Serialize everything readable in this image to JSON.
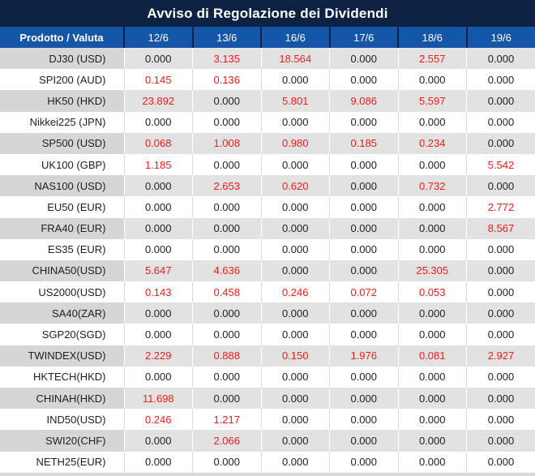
{
  "title": "Avviso di Regolazione dei Dividendi",
  "table": {
    "columns": [
      "Prodotto / Valuta",
      "12/6",
      "13/6",
      "16/6",
      "17/6",
      "18/6",
      "19/6"
    ],
    "zero_value": "0.000",
    "rows": [
      {
        "product": "DJ30 (USD)",
        "values": [
          "0.000",
          "3.135",
          "18.564",
          "0.000",
          "2.557",
          "0.000"
        ]
      },
      {
        "product": "SPI200 (AUD)",
        "values": [
          "0.145",
          "0.136",
          "0.000",
          "0.000",
          "0.000",
          "0.000"
        ]
      },
      {
        "product": "HK50 (HKD)",
        "values": [
          "23.892",
          "0.000",
          "5.801",
          "9.086",
          "5.597",
          "0.000"
        ]
      },
      {
        "product": "Nikkei225 (JPN)",
        "values": [
          "0.000",
          "0.000",
          "0.000",
          "0.000",
          "0.000",
          "0.000"
        ]
      },
      {
        "product": "SP500 (USD)",
        "values": [
          "0.068",
          "1.008",
          "0.980",
          "0.185",
          "0.234",
          "0.000"
        ]
      },
      {
        "product": "UK100 (GBP)",
        "values": [
          "1.185",
          "0.000",
          "0.000",
          "0.000",
          "0.000",
          "5.542"
        ]
      },
      {
        "product": "NAS100 (USD)",
        "values": [
          "0.000",
          "2.653",
          "0.620",
          "0.000",
          "0.732",
          "0.000"
        ]
      },
      {
        "product": "EU50 (EUR)",
        "values": [
          "0.000",
          "0.000",
          "0.000",
          "0.000",
          "0.000",
          "2.772"
        ]
      },
      {
        "product": "FRA40 (EUR)",
        "values": [
          "0.000",
          "0.000",
          "0.000",
          "0.000",
          "0.000",
          "8.567"
        ]
      },
      {
        "product": "ES35 (EUR)",
        "values": [
          "0.000",
          "0.000",
          "0.000",
          "0.000",
          "0.000",
          "0.000"
        ]
      },
      {
        "product": "CHINA50(USD)",
        "values": [
          "5.647",
          "4.636",
          "0.000",
          "0.000",
          "25.305",
          "0.000"
        ]
      },
      {
        "product": "US2000(USD)",
        "values": [
          "0.143",
          "0.458",
          "0.246",
          "0.072",
          "0.053",
          "0.000"
        ]
      },
      {
        "product": "SA40(ZAR)",
        "values": [
          "0.000",
          "0.000",
          "0.000",
          "0.000",
          "0.000",
          "0.000"
        ]
      },
      {
        "product": "SGP20(SGD)",
        "values": [
          "0.000",
          "0.000",
          "0.000",
          "0.000",
          "0.000",
          "0.000"
        ]
      },
      {
        "product": "TWINDEX(USD)",
        "values": [
          "2.229",
          "0.888",
          "0.150",
          "1.976",
          "0.081",
          "2.927"
        ]
      },
      {
        "product": "HKTECH(HKD)",
        "values": [
          "0.000",
          "0.000",
          "0.000",
          "0.000",
          "0.000",
          "0.000"
        ]
      },
      {
        "product": "CHINAH(HKD)",
        "values": [
          "11.698",
          "0.000",
          "0.000",
          "0.000",
          "0.000",
          "0.000"
        ]
      },
      {
        "product": "IND50(USD)",
        "values": [
          "0.246",
          "1.217",
          "0.000",
          "0.000",
          "0.000",
          "0.000"
        ]
      },
      {
        "product": "SWI20(CHF)",
        "values": [
          "0.000",
          "2.066",
          "0.000",
          "0.000",
          "0.000",
          "0.000"
        ]
      },
      {
        "product": "NETH25(EUR)",
        "values": [
          "0.000",
          "0.000",
          "0.000",
          "0.000",
          "0.000",
          "0.000"
        ]
      }
    ]
  },
  "colors": {
    "title_bar_bg": "#0d2243",
    "header_bg": "#1456a7",
    "header_text": "#ffffff",
    "stripe_product_bg": "#d6d6d6",
    "stripe_value_bg": "#e2e2e2",
    "row_white_bg": "#ffffff",
    "grid_line": "#d9d9d9",
    "text_dark": "#1f1f1f",
    "value_red": "#f01c1c"
  }
}
